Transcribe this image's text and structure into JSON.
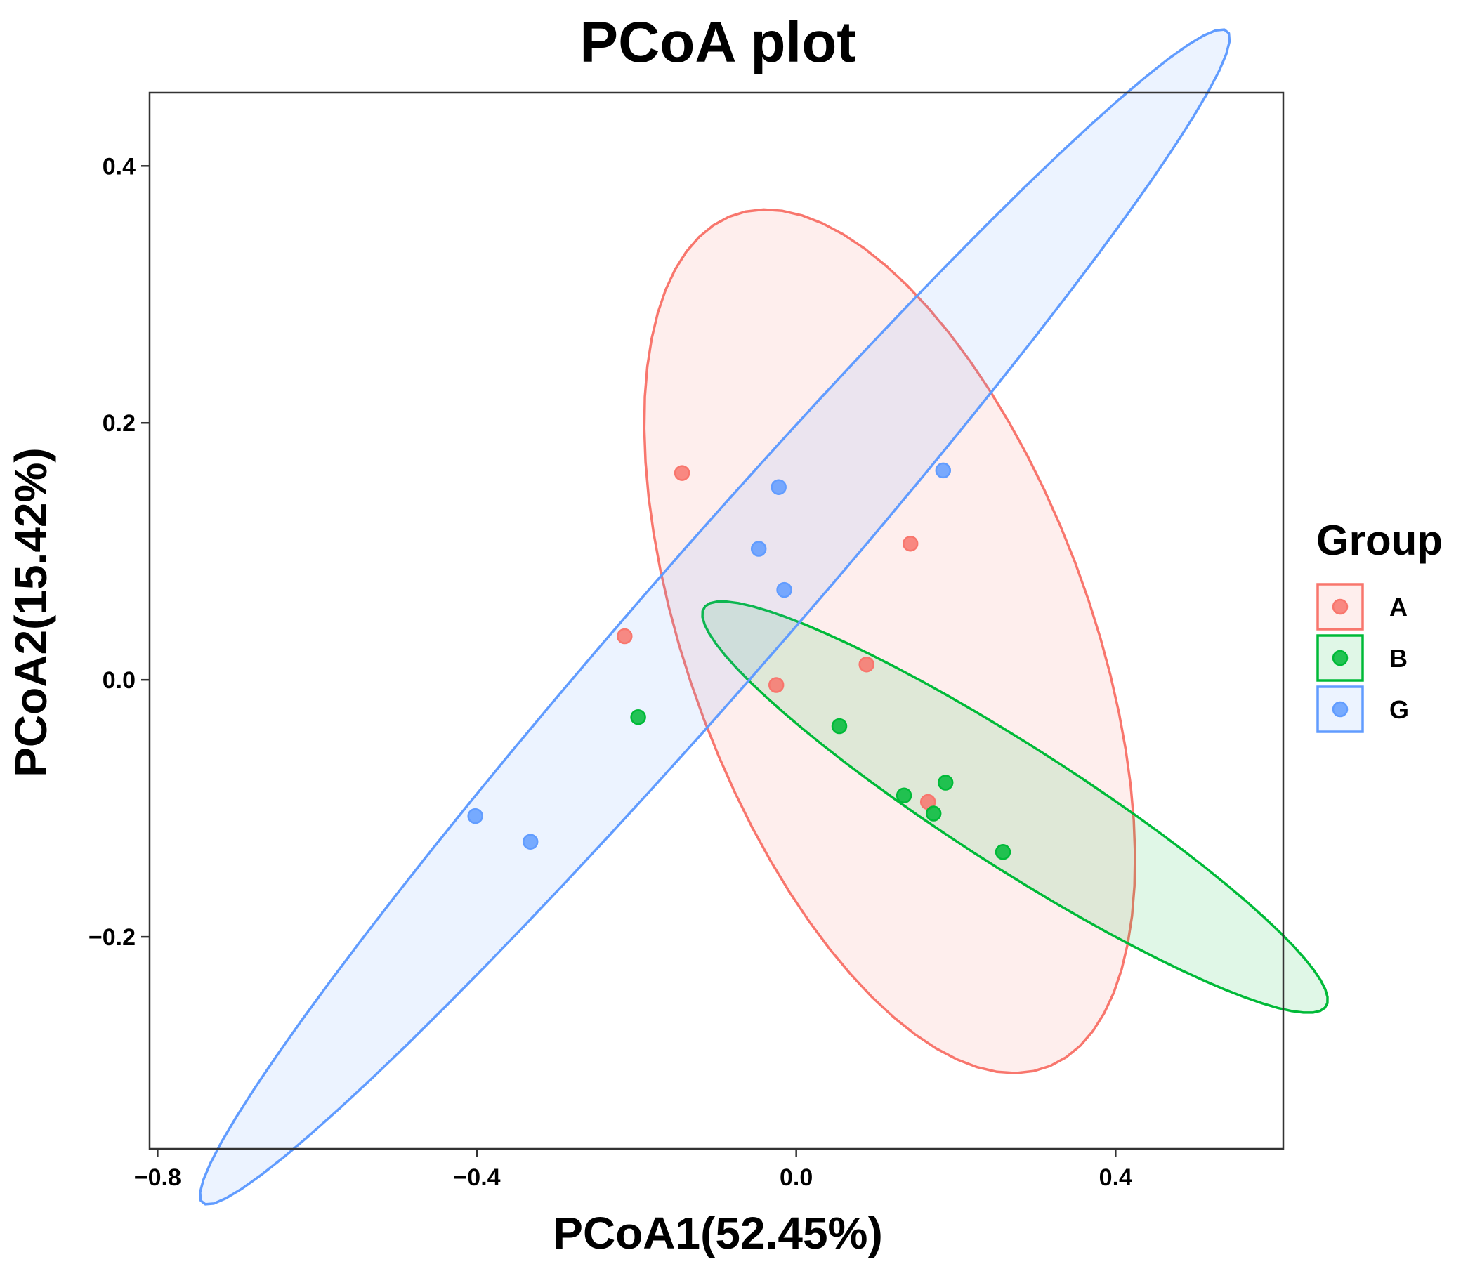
{
  "chart_data": {
    "type": "scatter",
    "title": "PCoA plot",
    "xlabel": "PCoA1(52.45%)",
    "ylabel": "PCoA2(15.42%)",
    "xlim": [
      -0.81,
      0.61
    ],
    "ylim": [
      -0.365,
      0.457
    ],
    "xticks": [
      {
        "value": -0.8,
        "label": "−0.8"
      },
      {
        "value": -0.4,
        "label": "−0.4"
      },
      {
        "value": 0.0,
        "label": "0.0"
      },
      {
        "value": 0.4,
        "label": "0.4"
      }
    ],
    "yticks": [
      {
        "value": -0.2,
        "label": "−0.2"
      },
      {
        "value": 0.0,
        "label": "0.0"
      },
      {
        "value": 0.2,
        "label": "0.2"
      },
      {
        "value": 0.4,
        "label": "0.4"
      }
    ],
    "grid": false,
    "legend": {
      "title": "Group",
      "position": "right"
    },
    "series": [
      {
        "name": "A",
        "color": "#F8766D",
        "points": [
          {
            "x": -0.143,
            "y": 0.161
          },
          {
            "x": 0.143,
            "y": 0.106
          },
          {
            "x": -0.215,
            "y": 0.034
          },
          {
            "x": 0.088,
            "y": 0.012
          },
          {
            "x": -0.025,
            "y": -0.004
          },
          {
            "x": 0.165,
            "y": -0.095
          }
        ],
        "ellipse": {
          "center": [
            0.117,
            0.03
          ],
          "semi_axis_major": 0.396,
          "semi_axis_minor": 0.225,
          "angle_deg": -50.0
        }
      },
      {
        "name": "B",
        "color": "#00BA38",
        "points": [
          {
            "x": -0.198,
            "y": -0.029
          },
          {
            "x": 0.054,
            "y": -0.036
          },
          {
            "x": 0.187,
            "y": -0.08
          },
          {
            "x": 0.135,
            "y": -0.09
          },
          {
            "x": 0.172,
            "y": -0.104
          },
          {
            "x": 0.259,
            "y": -0.134
          }
        ],
        "ellipse": {
          "center": [
            0.274,
            -0.099
          ],
          "semi_axis_major": 0.42,
          "semi_axis_minor": 0.052,
          "angle_deg": -21.3
        }
      },
      {
        "name": "G",
        "color": "#619CFF",
        "points": [
          {
            "x": 0.184,
            "y": 0.163
          },
          {
            "x": -0.022,
            "y": 0.15
          },
          {
            "x": -0.047,
            "y": 0.102
          },
          {
            "x": -0.015,
            "y": 0.07
          },
          {
            "x": -0.402,
            "y": -0.106
          },
          {
            "x": -0.333,
            "y": -0.126
          }
        ],
        "ellipse": {
          "center": [
            -0.102,
            0.049
          ],
          "semi_axis_major": 0.788,
          "semi_axis_minor": 0.065,
          "angle_deg": 35.2
        }
      }
    ]
  }
}
